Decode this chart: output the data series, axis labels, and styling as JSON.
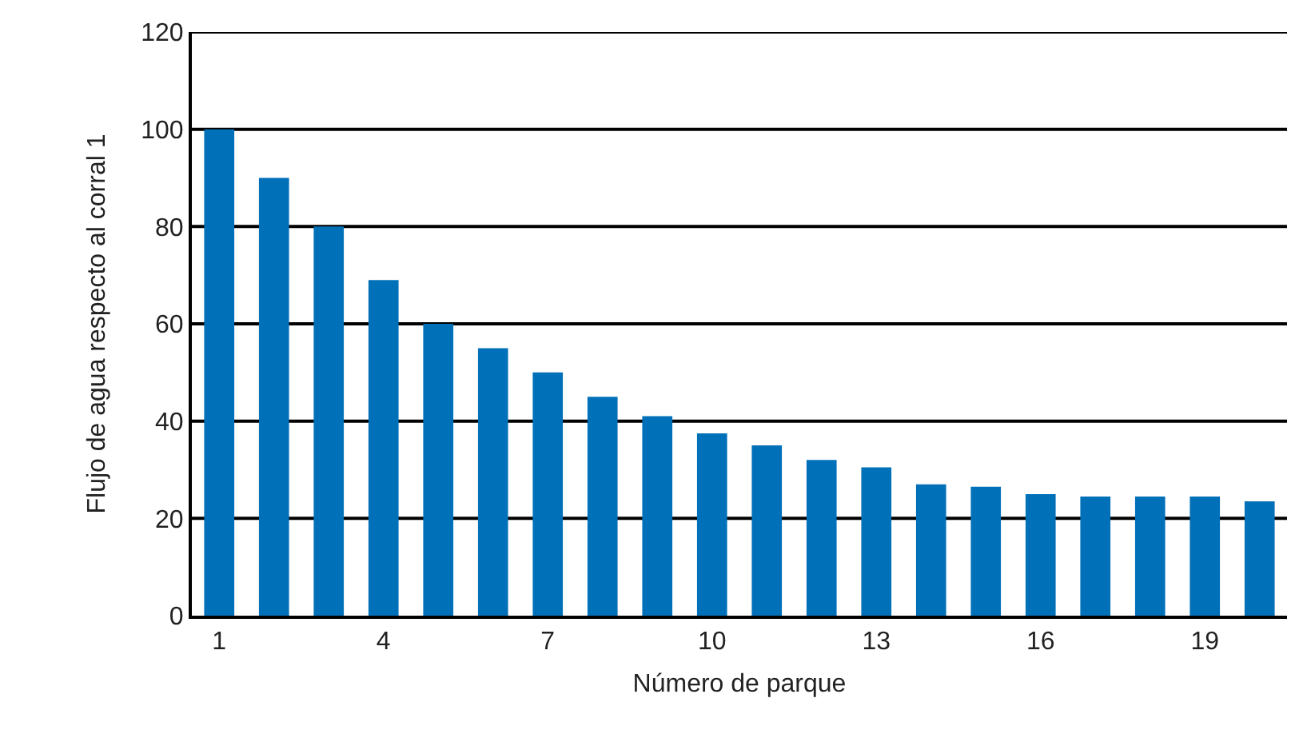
{
  "chart_data": {
    "type": "bar",
    "xlabel": "Número de parque",
    "ylabel": "Flujo de agua respecto al corral 1",
    "x": [
      1,
      2,
      3,
      4,
      5,
      6,
      7,
      8,
      9,
      10,
      11,
      12,
      13,
      14,
      15,
      16,
      17,
      18,
      19,
      20
    ],
    "values": [
      100,
      90,
      80,
      69,
      60,
      55,
      50,
      45,
      41,
      37.5,
      35,
      32,
      30.5,
      27,
      26.5,
      25,
      24.5,
      24.5,
      24.5,
      23.5
    ],
    "color": "#0070b8",
    "xlim": [
      0.5,
      20.5
    ],
    "xticks": [
      1,
      4,
      7,
      10,
      13,
      16,
      19
    ],
    "ylim": [
      0,
      120
    ],
    "yticks": [
      0,
      20,
      40,
      60,
      80,
      100,
      120
    ],
    "grid": "y"
  }
}
